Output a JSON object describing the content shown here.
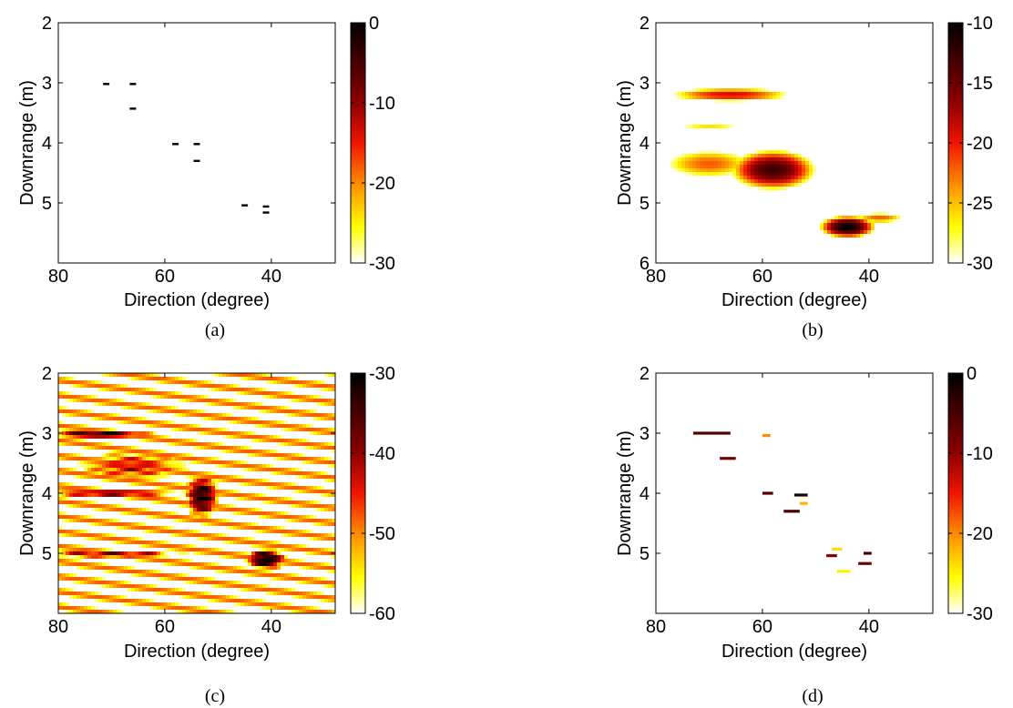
{
  "chart_data": [
    {
      "type": "heatmap",
      "subtitle": "(a)",
      "xlabel": "Direction (degree)",
      "ylabel": "Downrange (m)",
      "xlim": [
        80,
        28
      ],
      "ylim": [
        2,
        6
      ],
      "xticks": [
        80,
        60,
        40
      ],
      "yticks": [
        2,
        3,
        4,
        5
      ],
      "colorbar": {
        "range": [
          -30,
          0
        ],
        "ticks": [
          0,
          -10,
          -20,
          -30
        ]
      },
      "points": [
        {
          "x": 71,
          "y": 3.02,
          "value": 0
        },
        {
          "x": 66,
          "y": 3.02,
          "value": 0
        },
        {
          "x": 66,
          "y": 3.43,
          "value": 0
        },
        {
          "x": 58,
          "y": 4.02,
          "value": 0
        },
        {
          "x": 54,
          "y": 4.02,
          "value": 0
        },
        {
          "x": 54,
          "y": 4.3,
          "value": 0
        },
        {
          "x": 45,
          "y": 5.04,
          "value": 0
        },
        {
          "x": 41,
          "y": 5.06,
          "value": 0
        },
        {
          "x": 41,
          "y": 5.16,
          "value": 0
        }
      ]
    },
    {
      "type": "heatmap",
      "subtitle": "(b)",
      "xlabel": "Direction (degree)",
      "ylabel": "Downrange (m)",
      "xlim": [
        80,
        28
      ],
      "ylim": [
        2,
        6
      ],
      "xticks": [
        80,
        60,
        40
      ],
      "yticks": [
        2,
        3,
        4,
        5,
        6
      ],
      "colorbar": {
        "range": [
          -30,
          -10
        ],
        "ticks": [
          -10,
          -15,
          -20,
          -25,
          -30
        ]
      },
      "regions": [
        {
          "x": 66,
          "y": 3.2,
          "sx": 11,
          "sy": 0.11,
          "peak": -19
        },
        {
          "x": 70,
          "y": 3.72,
          "sx": 8,
          "sy": 0.08,
          "peak": -26
        },
        {
          "x": 58,
          "y": 4.45,
          "sx": 6.5,
          "sy": 0.27,
          "peak": -13
        },
        {
          "x": 70,
          "y": 4.35,
          "sx": 9,
          "sy": 0.25,
          "peak": -22
        },
        {
          "x": 44,
          "y": 5.4,
          "sx": 4,
          "sy": 0.14,
          "peak": -10
        },
        {
          "x": 38,
          "y": 5.25,
          "sx": 5,
          "sy": 0.09,
          "peak": -22
        }
      ]
    },
    {
      "type": "heatmap",
      "subtitle": "(c)",
      "xlabel": "Direction (degree)",
      "ylabel": "Downrange (m)",
      "xlim": [
        80,
        28
      ],
      "ylim": [
        2,
        6
      ],
      "xticks": [
        80,
        60,
        40
      ],
      "yticks": [
        2,
        3,
        4,
        5
      ],
      "colorbar": {
        "range": [
          -60,
          -30
        ],
        "ticks": [
          -30,
          -40,
          -50,
          -60
        ]
      },
      "regions": [
        {
          "x": 72,
          "y": 3.02,
          "sx": 8,
          "sy": 0.05,
          "peak": -31
        },
        {
          "x": 70,
          "y": 4.0,
          "sx": 12,
          "sy": 0.06,
          "peak": -38
        },
        {
          "x": 53,
          "y": 4.05,
          "sx": 2.5,
          "sy": 0.3,
          "peak": -32
        },
        {
          "x": 41,
          "y": 5.1,
          "sx": 3,
          "sy": 0.14,
          "peak": -30
        },
        {
          "x": 70,
          "y": 5.02,
          "sx": 12,
          "sy": 0.05,
          "peak": -38
        },
        {
          "x": 66,
          "y": 3.55,
          "sx": 10,
          "sy": 0.25,
          "peak": -44
        }
      ]
    },
    {
      "type": "heatmap",
      "subtitle": "(d)",
      "xlabel": "Direction (degree)",
      "ylabel": "Downrange (m)",
      "xlim": [
        80,
        28
      ],
      "ylim": [
        2,
        6
      ],
      "xticks": [
        80,
        60,
        40
      ],
      "yticks": [
        2,
        3,
        4,
        5
      ],
      "colorbar": {
        "range": [
          -30,
          0
        ],
        "ticks": [
          0,
          -10,
          -20,
          -30
        ]
      },
      "segments": [
        {
          "x1": 73,
          "x2": 66,
          "y": 3.0,
          "value": -6
        },
        {
          "x1": 60,
          "x2": 58.5,
          "y": 3.04,
          "value": -20
        },
        {
          "x1": 68,
          "x2": 65,
          "y": 3.42,
          "value": -8
        },
        {
          "x1": 60,
          "x2": 58,
          "y": 4.0,
          "value": -6
        },
        {
          "x1": 54,
          "x2": 51.5,
          "y": 4.03,
          "value": -2
        },
        {
          "x1": 53,
          "x2": 51.5,
          "y": 4.17,
          "value": -22
        },
        {
          "x1": 56,
          "x2": 53,
          "y": 4.3,
          "value": -5
        },
        {
          "x1": 48,
          "x2": 46,
          "y": 5.04,
          "value": -10
        },
        {
          "x1": 41,
          "x2": 39.5,
          "y": 5.0,
          "value": -5
        },
        {
          "x1": 42,
          "x2": 39.5,
          "y": 5.17,
          "value": -8
        },
        {
          "x1": 46,
          "x2": 43.5,
          "y": 5.3,
          "value": -25
        },
        {
          "x1": 47,
          "x2": 45,
          "y": 4.93,
          "value": -24
        }
      ]
    }
  ]
}
